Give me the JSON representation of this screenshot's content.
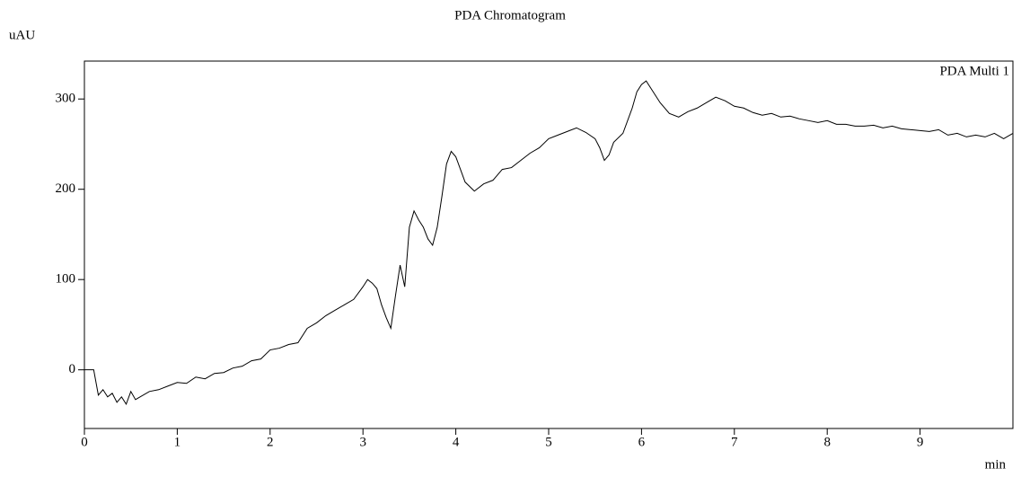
{
  "chart_data": {
    "type": "line",
    "title": "PDA Chromatogram",
    "y_label": "uAU",
    "x_label": "min",
    "x": [
      0,
      0.1,
      0.15,
      0.2,
      0.25,
      0.3,
      0.35,
      0.4,
      0.45,
      0.5,
      0.55,
      0.6,
      0.7,
      0.8,
      0.9,
      1.0,
      1.1,
      1.2,
      1.3,
      1.4,
      1.5,
      1.6,
      1.7,
      1.8,
      1.9,
      2.0,
      2.1,
      2.2,
      2.3,
      2.4,
      2.5,
      2.6,
      2.7,
      2.8,
      2.9,
      3.0,
      3.05,
      3.1,
      3.15,
      3.2,
      3.25,
      3.3,
      3.35,
      3.4,
      3.45,
      3.5,
      3.55,
      3.6,
      3.65,
      3.7,
      3.75,
      3.8,
      3.85,
      3.9,
      3.95,
      4.0,
      4.05,
      4.1,
      4.2,
      4.3,
      4.4,
      4.5,
      4.6,
      4.7,
      4.8,
      4.9,
      5.0,
      5.1,
      5.2,
      5.3,
      5.4,
      5.5,
      5.55,
      5.6,
      5.65,
      5.7,
      5.8,
      5.9,
      5.95,
      6.0,
      6.05,
      6.1,
      6.2,
      6.3,
      6.4,
      6.5,
      6.6,
      6.7,
      6.8,
      6.9,
      7.0,
      7.1,
      7.2,
      7.3,
      7.4,
      7.5,
      7.6,
      7.7,
      7.8,
      7.9,
      8.0,
      8.1,
      8.2,
      8.3,
      8.4,
      8.5,
      8.6,
      8.7,
      8.8,
      8.9,
      9.0,
      9.1,
      9.2,
      9.3,
      9.4,
      9.5,
      9.6,
      9.7,
      9.8,
      9.9,
      10.0
    ],
    "series": [
      {
        "name": "PDA Multi 1",
        "color": "#000000",
        "values": [
          0,
          0,
          -28,
          -22,
          -30,
          -26,
          -36,
          -30,
          -38,
          -24,
          -33,
          -30,
          -24,
          -22,
          -18,
          -14,
          -15,
          -8,
          -10,
          -4,
          -3,
          2,
          4,
          10,
          12,
          22,
          24,
          28,
          30,
          46,
          52,
          60,
          66,
          72,
          78,
          92,
          100,
          96,
          90,
          72,
          58,
          46,
          82,
          116,
          92,
          158,
          176,
          166,
          158,
          145,
          138,
          158,
          192,
          228,
          242,
          236,
          222,
          208,
          198,
          206,
          210,
          222,
          224,
          232,
          240,
          246,
          256,
          260,
          264,
          268,
          263,
          256,
          246,
          232,
          238,
          252,
          262,
          290,
          308,
          316,
          320,
          312,
          296,
          284,
          280,
          286,
          290,
          296,
          302,
          298,
          292,
          290,
          285,
          282,
          284,
          280,
          281,
          278,
          276,
          274,
          276,
          272,
          272,
          270,
          270,
          271,
          268,
          270,
          267,
          266,
          265,
          264,
          266,
          260,
          262,
          258,
          260,
          258,
          262,
          256,
          262
        ]
      }
    ],
    "xlim": [
      0,
      10
    ],
    "ylim": [
      -65,
      342
    ],
    "xticks": [
      0,
      1,
      2,
      3,
      4,
      5,
      6,
      7,
      8,
      9
    ],
    "yticks": [
      0,
      100,
      200,
      300
    ]
  }
}
